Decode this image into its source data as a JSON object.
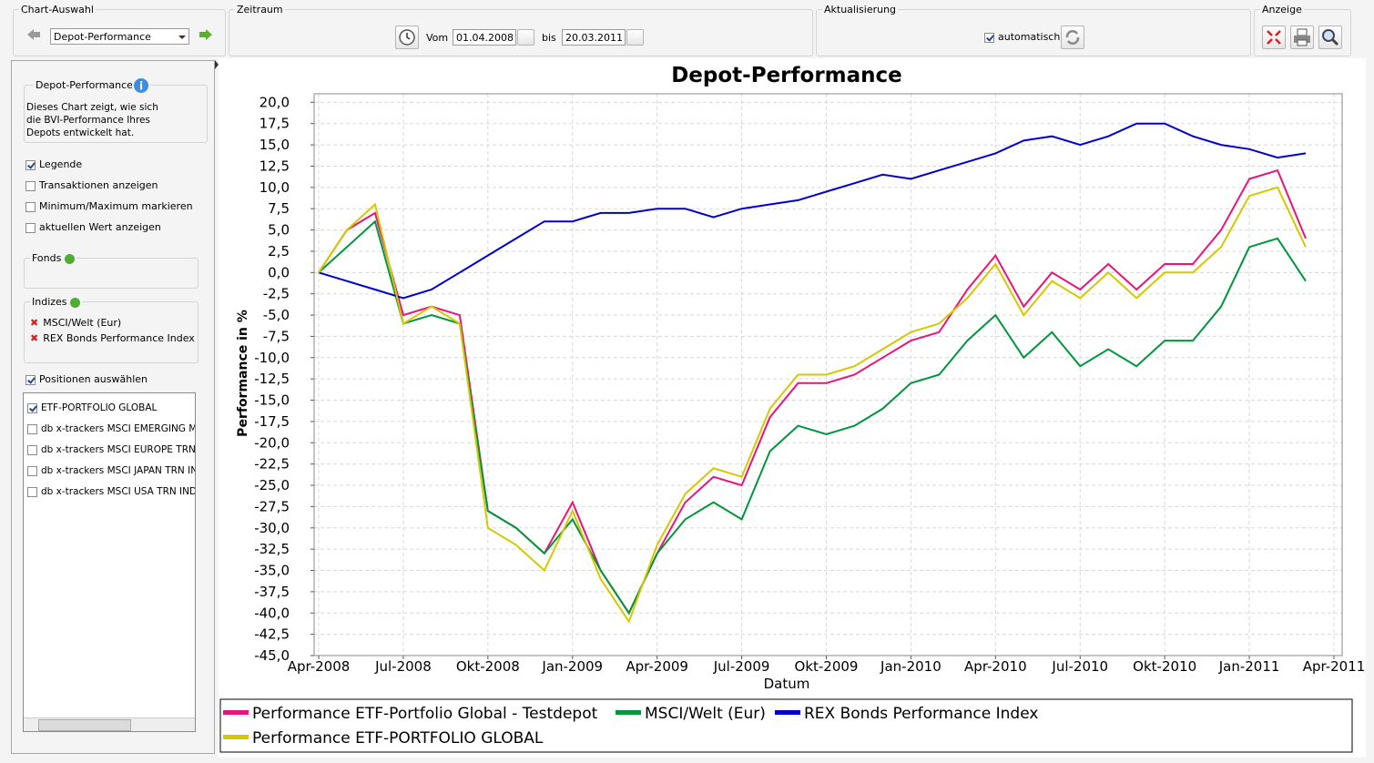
{
  "toolbar": {
    "chart_selection": {
      "title": "Chart-Auswahl",
      "selected": "Depot-Performance"
    },
    "period": {
      "title": "Zeitraum",
      "from_label": "Vom",
      "from": "01.04.2008",
      "to_label": "bis",
      "to": "20.03.2011"
    },
    "update": {
      "title": "Aktualisierung",
      "auto_label": "automatisch",
      "auto_checked": true
    },
    "display": {
      "title": "Anzeige"
    }
  },
  "sidebar": {
    "info": {
      "title": "Depot-Performance",
      "text": "Dieses Chart zeigt, wie sich die BVI-Performance Ihres Depots entwickelt hat."
    },
    "options": [
      {
        "label": "Legende",
        "checked": true
      },
      {
        "label": "Transaktionen anzeigen",
        "checked": false
      },
      {
        "label": "Minimum/Maximum markieren",
        "checked": false
      },
      {
        "label": "aktuellen Wert anzeigen",
        "checked": false
      }
    ],
    "funds": {
      "title": "Fonds"
    },
    "indices": {
      "title": "Indizes",
      "items": [
        "MSCI/Welt (Eur)",
        "REX Bonds Performance Index"
      ]
    },
    "positions": {
      "label": "Positionen auswählen",
      "checked": true,
      "items": [
        {
          "label": "ETF-PORTFOLIO GLOBAL",
          "checked": true
        },
        {
          "label": "db x-trackers MSCI EMERGING MKT",
          "checked": false
        },
        {
          "label": "db x-trackers MSCI EUROPE TRN IN",
          "checked": false
        },
        {
          "label": "db x-trackers MSCI JAPAN TRN IND",
          "checked": false
        },
        {
          "label": "db x-trackers MSCI USA TRN INDEX",
          "checked": false
        }
      ]
    }
  },
  "chart_data": {
    "type": "line",
    "title": "Depot-Performance",
    "x_label": "Datum",
    "y_label": "Performance in %",
    "x": [
      "2008-04",
      "2008-05",
      "2008-06",
      "2008-07",
      "2008-08",
      "2008-09",
      "2008-10",
      "2008-11",
      "2008-12",
      "2009-01",
      "2009-02",
      "2009-03",
      "2009-04",
      "2009-05",
      "2009-06",
      "2009-07",
      "2009-08",
      "2009-09",
      "2009-10",
      "2009-11",
      "2009-12",
      "2010-01",
      "2010-02",
      "2010-03",
      "2010-04",
      "2010-05",
      "2010-06",
      "2010-07",
      "2010-08",
      "2010-09",
      "2010-10",
      "2010-11",
      "2010-12",
      "2011-01",
      "2011-02",
      "2011-03"
    ],
    "xlim": [
      "2008-04",
      "2011-04"
    ],
    "xticks": [
      {
        "value": "2008-04",
        "label": "Apr-2008"
      },
      {
        "value": "2008-07",
        "label": "Jul-2008"
      },
      {
        "value": "2008-10",
        "label": "Okt-2008"
      },
      {
        "value": "2009-01",
        "label": "Jan-2009"
      },
      {
        "value": "2009-04",
        "label": "Apr-2009"
      },
      {
        "value": "2009-07",
        "label": "Jul-2009"
      },
      {
        "value": "2009-10",
        "label": "Okt-2009"
      },
      {
        "value": "2010-01",
        "label": "Jan-2010"
      },
      {
        "value": "2010-04",
        "label": "Apr-2010"
      },
      {
        "value": "2010-07",
        "label": "Jul-2010"
      },
      {
        "value": "2010-10",
        "label": "Okt-2010"
      },
      {
        "value": "2011-01",
        "label": "Jan-2011"
      },
      {
        "value": "2011-04",
        "label": "Apr-2011"
      }
    ],
    "ylim": [
      -45,
      21
    ],
    "yticks": [
      {
        "value": 20,
        "label": "20,0"
      },
      {
        "value": 17.5,
        "label": "17,5"
      },
      {
        "value": 15,
        "label": "15,0"
      },
      {
        "value": 12.5,
        "label": "12,5"
      },
      {
        "value": 10,
        "label": "10,0"
      },
      {
        "value": 7.5,
        "label": "7,5"
      },
      {
        "value": 5,
        "label": "5,0"
      },
      {
        "value": 2.5,
        "label": "2,5"
      },
      {
        "value": 0,
        "label": "0,0"
      },
      {
        "value": -2.5,
        "label": "-2,5"
      },
      {
        "value": -5,
        "label": "-5,0"
      },
      {
        "value": -7.5,
        "label": "-7,5"
      },
      {
        "value": -10,
        "label": "-10,0"
      },
      {
        "value": -12.5,
        "label": "-12,5"
      },
      {
        "value": -15,
        "label": "-15,0"
      },
      {
        "value": -17.5,
        "label": "-17,5"
      },
      {
        "value": -20,
        "label": "-20,0"
      },
      {
        "value": -22.5,
        "label": "-22,5"
      },
      {
        "value": -25,
        "label": "-25,0"
      },
      {
        "value": -27.5,
        "label": "-27,5"
      },
      {
        "value": -30,
        "label": "-30,0"
      },
      {
        "value": -32.5,
        "label": "-32,5"
      },
      {
        "value": -35,
        "label": "-35,0"
      },
      {
        "value": -37.5,
        "label": "-37,5"
      },
      {
        "value": -40,
        "label": "-40,0"
      },
      {
        "value": -42.5,
        "label": "-42,5"
      },
      {
        "value": -45,
        "label": "-45,0"
      }
    ],
    "grid": true,
    "legend": "bottom",
    "series": [
      {
        "name": "Performance ETF-Portfolio Global - Testdepot",
        "color": "#e8147c",
        "values": [
          0,
          5,
          7,
          -5,
          -4,
          -5,
          -28,
          -30,
          -33,
          -27,
          -35,
          -40,
          -33,
          -27,
          -24,
          -25,
          -17,
          -13,
          -13,
          -12,
          -10,
          -8,
          -7,
          -2,
          2,
          -4,
          0,
          -2,
          1,
          -2,
          1,
          1,
          5,
          11,
          12,
          4
        ]
      },
      {
        "name": "MSCI/Welt (Eur)",
        "color": "#00963c",
        "values": [
          0,
          3,
          6,
          -6,
          -5,
          -6,
          -28,
          -30,
          -33,
          -29,
          -35,
          -40,
          -33,
          -29,
          -27,
          -29,
          -21,
          -18,
          -19,
          -18,
          -16,
          -13,
          -12,
          -8,
          -5,
          -10,
          -7,
          -11,
          -9,
          -11,
          -8,
          -8,
          -4,
          3,
          4,
          -1
        ]
      },
      {
        "name": "REX Bonds Performance Index",
        "color": "#0000cc",
        "values": [
          0,
          -1,
          -2,
          -3,
          -2,
          0,
          2,
          4,
          6,
          6,
          7,
          7,
          7.5,
          7.5,
          6.5,
          7.5,
          8,
          8.5,
          9.5,
          10.5,
          11.5,
          11,
          12,
          13,
          14,
          15.5,
          16,
          15,
          16,
          17.5,
          17.5,
          16,
          15,
          14.5,
          13.5,
          14
        ]
      },
      {
        "name": "Performance ETF-PORTFOLIO GLOBAL",
        "color": "#d4c800",
        "values": [
          0,
          5,
          8,
          -6,
          -4,
          -6,
          -30,
          -32,
          -35,
          -28,
          -36,
          -41,
          -32,
          -26,
          -23,
          -24,
          -16,
          -12,
          -12,
          -11,
          -9,
          -7,
          -6,
          -3,
          1,
          -5,
          -1,
          -3,
          0,
          -3,
          0,
          0,
          3,
          9,
          10,
          3
        ]
      }
    ]
  }
}
